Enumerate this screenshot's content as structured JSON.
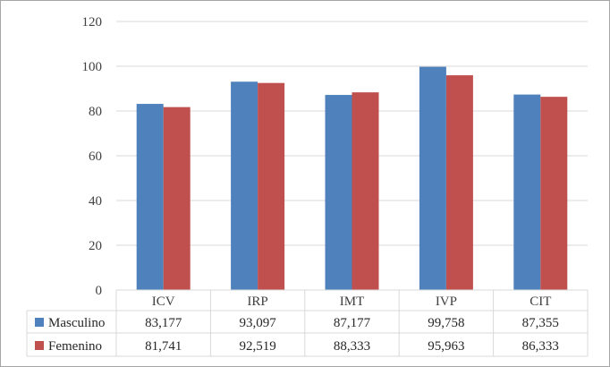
{
  "colors": {
    "masculino": "#4f81bd",
    "femenino": "#c0504d",
    "grid": "#d9d9d9",
    "frame": "#a6a6a6"
  },
  "chart_data": {
    "type": "bar",
    "title": "",
    "xlabel": "",
    "ylabel": "",
    "ylim": [
      0,
      120
    ],
    "yticks": [
      0,
      20,
      40,
      60,
      80,
      100,
      120
    ],
    "grid": true,
    "legend": "data-table",
    "categories": [
      "ICV",
      "IRP",
      "IMT",
      "IVP",
      "CIT"
    ],
    "series": [
      {
        "name": "Masculino",
        "color": "#4f81bd",
        "values": [
          83.177,
          93.097,
          87.177,
          99.758,
          87.355
        ],
        "labels": [
          "83,177",
          "93,097",
          "87,177",
          "99,758",
          "87,355"
        ]
      },
      {
        "name": "Femenino",
        "color": "#c0504d",
        "values": [
          81.741,
          92.519,
          88.333,
          95.963,
          86.333
        ],
        "labels": [
          "81,741",
          "92,519",
          "88,333",
          "95,963",
          "86,333"
        ]
      }
    ]
  }
}
